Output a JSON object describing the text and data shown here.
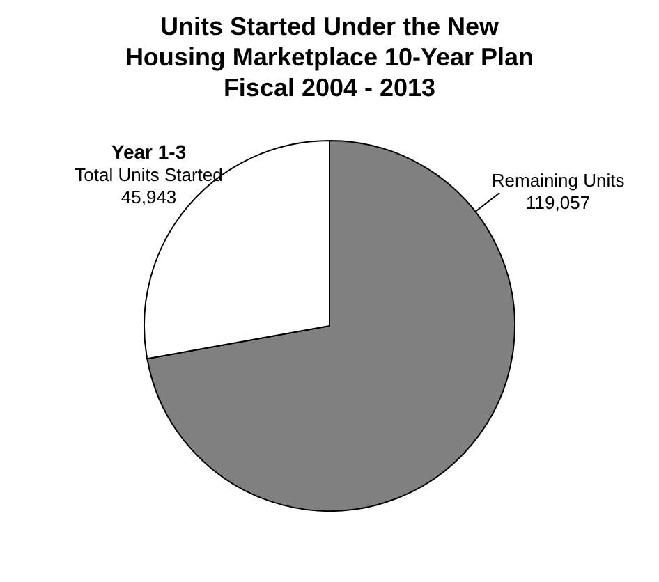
{
  "chart_data": {
    "type": "pie",
    "title": "Units Started Under the New\nHousing Marketplace 10-Year Plan\nFiscal 2004 - 2013",
    "categories": [
      "Remaining Units",
      "Total Units Started"
    ],
    "values": [
      119057,
      45943
    ],
    "colors": [
      "#808080",
      "#ffffff"
    ],
    "value_labels": [
      "119,057",
      "45,943"
    ],
    "annotations": [
      "Year 1-3"
    ],
    "legend": false
  }
}
